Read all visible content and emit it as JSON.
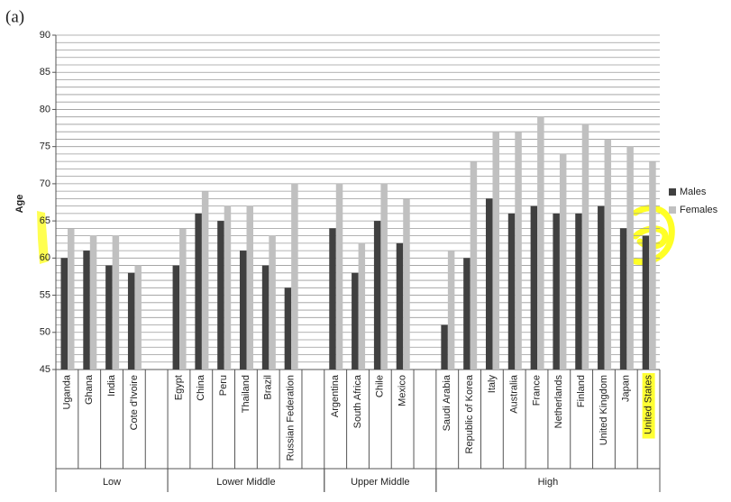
{
  "chart_data": {
    "type": "bar",
    "title": "(a)",
    "ylabel": "Age",
    "categories": [
      "Uganda",
      "Ghana",
      "India",
      "Cote d'Ivoire",
      null,
      "Egypt",
      "China",
      "Peru",
      "Thailand",
      "Brazil",
      "Russian Federation",
      null,
      "Argentina",
      "South Africa",
      "Chile",
      "Mexico",
      null,
      "Saudi Arabia",
      "Republic of Korea",
      "Italy",
      "Australia",
      "France",
      "Netherlands",
      "Finland",
      "United Kingdom",
      "Japan",
      "United States"
    ],
    "groups": [
      {
        "label": "Low",
        "count": 5
      },
      {
        "label": "Lower Middle",
        "count": 7
      },
      {
        "label": "Upper Middle",
        "count": 5
      },
      {
        "label": "High",
        "count": 10
      }
    ],
    "series": [
      {
        "name": "Males",
        "color": "#404040",
        "values": [
          60,
          61,
          59,
          58,
          null,
          59,
          66,
          65,
          61,
          59,
          56,
          null,
          64,
          58,
          65,
          62,
          null,
          51,
          60,
          68,
          66,
          67,
          66,
          66,
          67,
          64,
          63
        ]
      },
      {
        "name": "Females",
        "color": "#c0c0c0",
        "values": [
          64,
          63,
          63,
          59,
          null,
          64,
          69,
          67,
          67,
          63,
          70,
          null,
          70,
          62,
          70,
          68,
          null,
          61,
          73,
          77,
          77,
          79,
          74,
          78,
          76,
          75,
          73
        ]
      }
    ],
    "ylim": [
      45,
      90
    ],
    "yticks": [
      45,
      50,
      55,
      60,
      65,
      70,
      75,
      80,
      85,
      90
    ],
    "grid": true,
    "legend": "right"
  }
}
